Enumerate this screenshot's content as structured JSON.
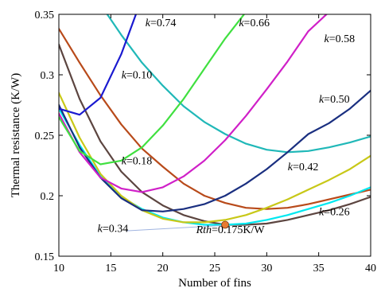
{
  "chart_data": {
    "type": "line",
    "title": "",
    "xlabel": "Number of fins",
    "ylabel": "Thermal resistance (K/W)",
    "xlim": [
      10,
      40
    ],
    "ylim": [
      0.15,
      0.35
    ],
    "xticks": [
      "10",
      "15",
      "20",
      "25",
      "30",
      "35",
      "40"
    ],
    "yticks": [
      "0.15",
      "0.2",
      "0.25",
      "0.3",
      "0.35"
    ],
    "grid": false,
    "series": [
      {
        "name": "k=0.10",
        "color": "#20b8b8",
        "x": [
          14.5,
          16,
          18,
          20,
          22,
          24,
          26,
          28,
          30,
          32,
          34,
          36,
          38,
          40
        ],
        "y": [
          0.352,
          0.333,
          0.31,
          0.291,
          0.274,
          0.261,
          0.251,
          0.243,
          0.238,
          0.236,
          0.237,
          0.24,
          0.244,
          0.249
        ]
      },
      {
        "name": "k=0.18",
        "color": "#b84a1a",
        "x": [
          10,
          12,
          14,
          16,
          18,
          20,
          22,
          24,
          26,
          28,
          30,
          32,
          34,
          36,
          38,
          40
        ],
        "y": [
          0.338,
          0.31,
          0.283,
          0.259,
          0.239,
          0.224,
          0.21,
          0.2,
          0.194,
          0.19,
          0.189,
          0.19,
          0.193,
          0.197,
          0.201,
          0.205
        ]
      },
      {
        "name": "k=0.26",
        "color": "#5c4540",
        "x": [
          10,
          12,
          14,
          16,
          18,
          20,
          22,
          24,
          26,
          28,
          30,
          32,
          34,
          36,
          38,
          40
        ],
        "y": [
          0.325,
          0.28,
          0.245,
          0.22,
          0.203,
          0.192,
          0.184,
          0.179,
          0.176,
          0.176,
          0.177,
          0.18,
          0.184,
          0.188,
          0.193,
          0.199
        ]
      },
      {
        "name": "k=0.34",
        "color": "#00e8f0",
        "x": [
          10,
          12,
          14,
          16,
          18,
          20,
          22,
          24,
          26,
          28,
          30,
          32,
          34,
          36,
          38,
          40
        ],
        "y": [
          0.272,
          0.242,
          0.216,
          0.199,
          0.189,
          0.182,
          0.178,
          0.176,
          0.176,
          0.177,
          0.18,
          0.184,
          0.189,
          0.194,
          0.2,
          0.207
        ]
      },
      {
        "name": "k=0.42",
        "color": "#c8c818",
        "x": [
          10,
          12,
          14,
          16,
          18,
          20,
          22,
          24,
          26,
          28,
          30,
          32,
          34,
          36,
          38,
          40
        ],
        "y": [
          0.285,
          0.248,
          0.218,
          0.2,
          0.188,
          0.181,
          0.178,
          0.178,
          0.18,
          0.184,
          0.19,
          0.197,
          0.205,
          0.213,
          0.222,
          0.233
        ]
      },
      {
        "name": "k=0.50",
        "color": "#1a2f80",
        "x": [
          10,
          12,
          14,
          16,
          18,
          20,
          22,
          24,
          26,
          28,
          30,
          32,
          34,
          36,
          38,
          40
        ],
        "y": [
          0.275,
          0.24,
          0.215,
          0.198,
          0.188,
          0.187,
          0.189,
          0.193,
          0.2,
          0.21,
          0.222,
          0.236,
          0.251,
          0.26,
          0.272,
          0.287
        ]
      },
      {
        "name": "k=0.58",
        "color": "#d020c8",
        "x": [
          10,
          12,
          14,
          16,
          18,
          20,
          22,
          24,
          26,
          28,
          30,
          32,
          34,
          36
        ],
        "y": [
          0.268,
          0.236,
          0.215,
          0.206,
          0.203,
          0.207,
          0.216,
          0.229,
          0.246,
          0.266,
          0.288,
          0.311,
          0.336,
          0.352
        ]
      },
      {
        "name": "k=0.66",
        "color": "#40e040",
        "x": [
          10,
          12,
          14,
          16,
          18,
          20,
          22,
          24,
          26,
          28,
          30
        ],
        "y": [
          0.265,
          0.237,
          0.226,
          0.229,
          0.24,
          0.258,
          0.28,
          0.305,
          0.33,
          0.352,
          0.352
        ]
      },
      {
        "name": "k=0.74",
        "color": "#1a1ad0",
        "x": [
          10,
          12,
          14,
          16,
          17.5
        ],
        "y": [
          0.272,
          0.267,
          0.281,
          0.317,
          0.352
        ]
      }
    ],
    "annotations": [
      {
        "text_italic": "k",
        "text": "=0.74",
        "x": 19.8,
        "y": 0.34
      },
      {
        "text_italic": "k",
        "text": "=0.66",
        "x": 28.8,
        "y": 0.34
      },
      {
        "text_italic": "k",
        "text": "=0.58",
        "x": 37.0,
        "y": 0.327
      },
      {
        "text_italic": "k",
        "text": "=0.10",
        "x": 17.5,
        "y": 0.297
      },
      {
        "text_italic": "k",
        "text": "=0.50",
        "x": 36.5,
        "y": 0.277
      },
      {
        "text_italic": "k",
        "text": "=0.18",
        "x": 17.5,
        "y": 0.226
      },
      {
        "text_italic": "k",
        "text": "=0.42",
        "x": 33.5,
        "y": 0.221
      },
      {
        "text_italic": "k",
        "text": "=0.26",
        "x": 36.5,
        "y": 0.184
      },
      {
        "text_italic": "k",
        "text": "=0.34",
        "x": 15.2,
        "y": 0.17
      },
      {
        "text_italic": "Rth",
        "text": "=0.175K/W",
        "x": 26.5,
        "y": 0.169
      }
    ],
    "marker": {
      "x": 26,
      "y": 0.176,
      "color": "#e87a30"
    }
  }
}
